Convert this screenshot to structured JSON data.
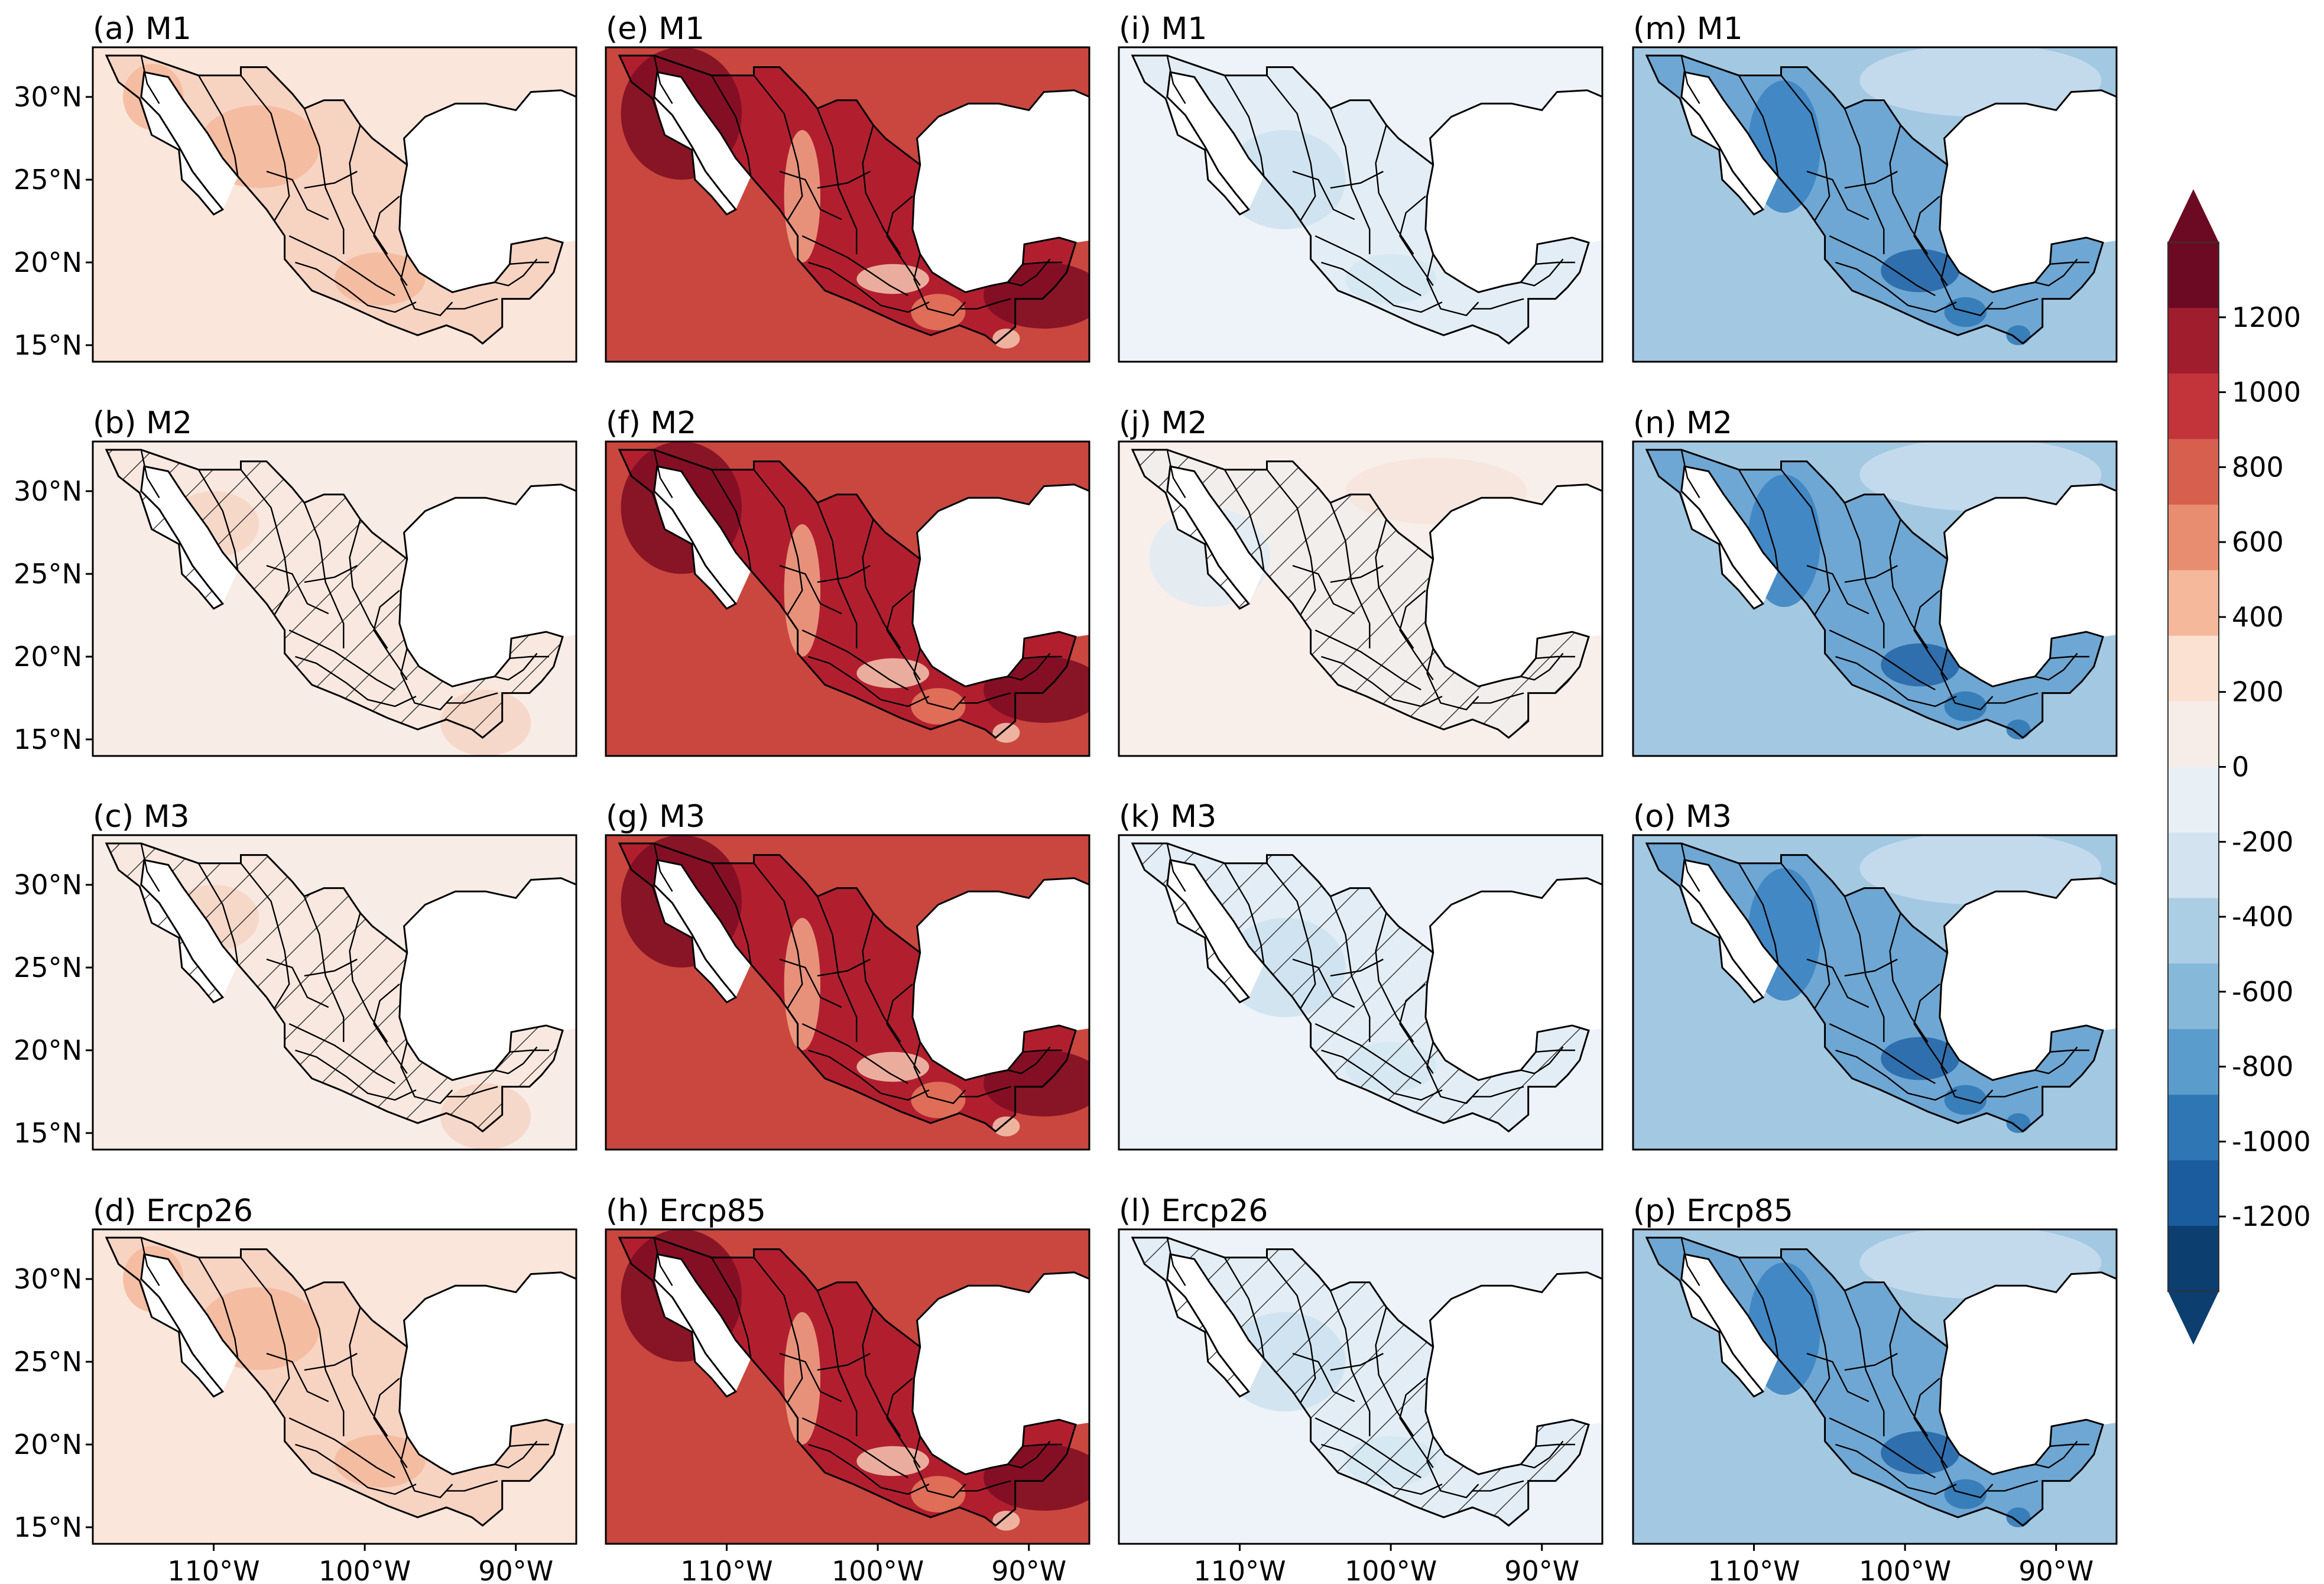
{
  "chart_data": {
    "type": "heatmap",
    "description_units": "projected change, color scale from -1200 to 1200",
    "latitude_ticks": [
      "30°N",
      "25°N",
      "20°N",
      "15°N"
    ],
    "longitude_ticks": [
      "110°W",
      "100°W",
      "90°W"
    ],
    "lat_range": [
      14,
      33
    ],
    "lon_range": [
      -118,
      -86
    ],
    "colorbar": {
      "ticks": [
        1200,
        1000,
        800,
        600,
        400,
        200,
        0,
        -200,
        -400,
        -600,
        -800,
        -1000,
        -1200
      ],
      "range": [
        -1400,
        1400
      ],
      "extend": "both",
      "colors": [
        "#6b0a22",
        "#a01d2e",
        "#c3343a",
        "#d65f4d",
        "#e88d6f",
        "#f5b89b",
        "#fbe1d2",
        "#f6ede8",
        "#e9f0f5",
        "#d3e4f0",
        "#abcee4",
        "#85b8d9",
        "#5a9ccb",
        "#2f77b4",
        "#1b5c9e",
        "#0c3e70"
      ]
    },
    "panels": [
      {
        "label": "(a) M1",
        "column": 0,
        "row": 0,
        "scheme": "warm_light",
        "hatched": false
      },
      {
        "label": "(b) M2",
        "column": 0,
        "row": 1,
        "scheme": "warm_lightest",
        "hatched": true
      },
      {
        "label": "(c) M3",
        "column": 0,
        "row": 2,
        "scheme": "warm_lightest",
        "hatched": true
      },
      {
        "label": "(d) Ercp26",
        "column": 0,
        "row": 3,
        "scheme": "warm_light",
        "hatched": false
      },
      {
        "label": "(e) M1",
        "column": 1,
        "row": 0,
        "scheme": "warm_strong",
        "hatched": false
      },
      {
        "label": "(f) M2",
        "column": 1,
        "row": 1,
        "scheme": "warm_strong",
        "hatched": false
      },
      {
        "label": "(g) M3",
        "column": 1,
        "row": 2,
        "scheme": "warm_strong",
        "hatched": false
      },
      {
        "label": "(h) Ercp85",
        "column": 1,
        "row": 3,
        "scheme": "warm_strong",
        "hatched": false
      },
      {
        "label": "(i) M1",
        "column": 2,
        "row": 0,
        "scheme": "cool_light",
        "hatched": false
      },
      {
        "label": "(j) M2",
        "column": 2,
        "row": 1,
        "scheme": "neutral",
        "hatched": true
      },
      {
        "label": "(k) M3",
        "column": 2,
        "row": 2,
        "scheme": "cool_light",
        "hatched": true
      },
      {
        "label": "(l) Ercp26",
        "column": 2,
        "row": 3,
        "scheme": "cool_light",
        "hatched": true
      },
      {
        "label": "(m) M1",
        "column": 3,
        "row": 0,
        "scheme": "cool_strong",
        "hatched": false
      },
      {
        "label": "(n) M2",
        "column": 3,
        "row": 1,
        "scheme": "cool_strong",
        "hatched": false
      },
      {
        "label": "(o) M3",
        "column": 3,
        "row": 2,
        "scheme": "cool_strong",
        "hatched": false
      },
      {
        "label": "(p) Ercp85",
        "column": 3,
        "row": 3,
        "scheme": "cool_strong",
        "hatched": false
      }
    ]
  }
}
